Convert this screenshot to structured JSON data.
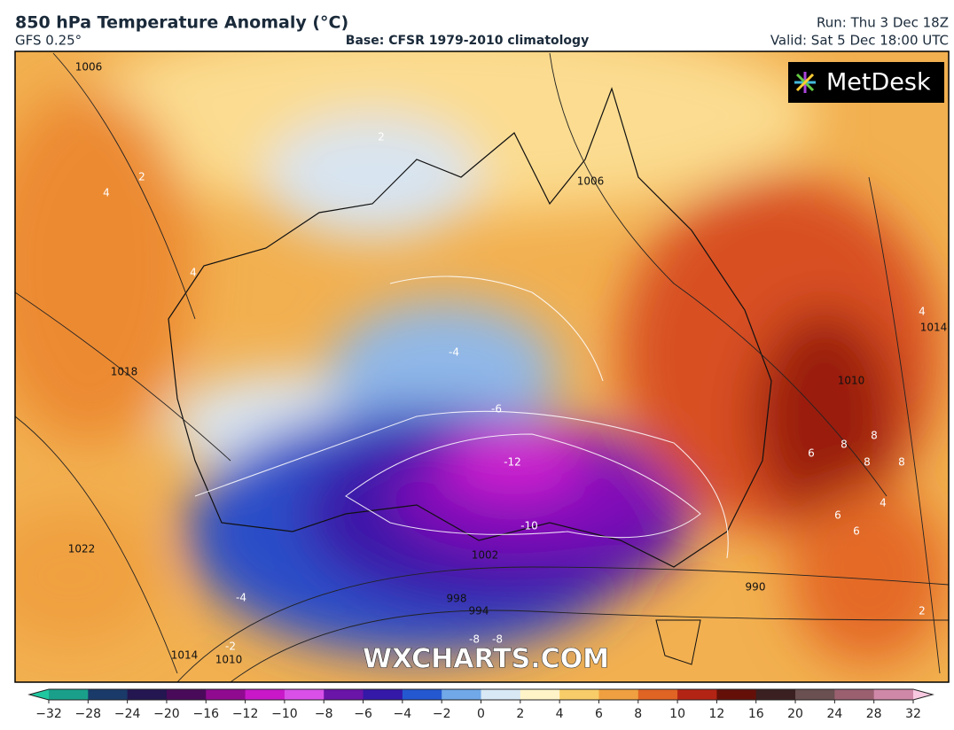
{
  "header": {
    "title": "850 hPa Temperature Anomaly (°C)",
    "model": "GFS 0.25°",
    "base": "Base: CFSR 1979-2010 climatology",
    "run": "Run: Thu 3 Dec 18Z",
    "valid": "Valid: Sat 5 Dec 18:00 UTC"
  },
  "logo": "MetDesk",
  "watermark": "WXCHARTS.COM",
  "map_labels": [
    "1006",
    "1006",
    "1018",
    "1022",
    "1014",
    "1010",
    "1014",
    "1010",
    "1002",
    "994",
    "998",
    "990",
    "-6",
    "-12",
    "-10",
    "-4",
    "-4",
    "-2",
    "-8",
    "-8",
    "2",
    "2",
    "4",
    "4",
    "4",
    "6",
    "6",
    "8",
    "8",
    "8",
    "8",
    "6",
    "4",
    "2"
  ],
  "colorbar": {
    "ticks": [
      {
        "value": -32,
        "label": "−32"
      },
      {
        "value": -28,
        "label": "−28"
      },
      {
        "value": -24,
        "label": "−24"
      },
      {
        "value": -20,
        "label": "−20"
      },
      {
        "value": -16,
        "label": "−16"
      },
      {
        "value": -12,
        "label": "−12"
      },
      {
        "value": -10,
        "label": "−10"
      },
      {
        "value": -8,
        "label": "−8"
      },
      {
        "value": -6,
        "label": "−6"
      },
      {
        "value": -4,
        "label": "−4"
      },
      {
        "value": -2,
        "label": "−2"
      },
      0,
      2,
      4,
      6,
      8,
      10,
      12,
      16,
      20,
      24,
      28,
      32
    ],
    "colors": [
      "#1aa08a",
      "#1a3a6a",
      "#241650",
      "#4a0a5a",
      "#900a90",
      "#c818c8",
      "#d850e8",
      "#6a14a8",
      "#3418a8",
      "#2458d0",
      "#70a8e8",
      "#d8e8f4",
      "#fff4c8",
      "#f8cc68",
      "#f0a040",
      "#e06424",
      "#b42414",
      "#641008",
      "#3a2020",
      "#6a5050",
      "#9a6070",
      "#d088a8"
    ],
    "arrow_colors": [
      "#20c8a0",
      "#f8c8e0"
    ]
  }
}
